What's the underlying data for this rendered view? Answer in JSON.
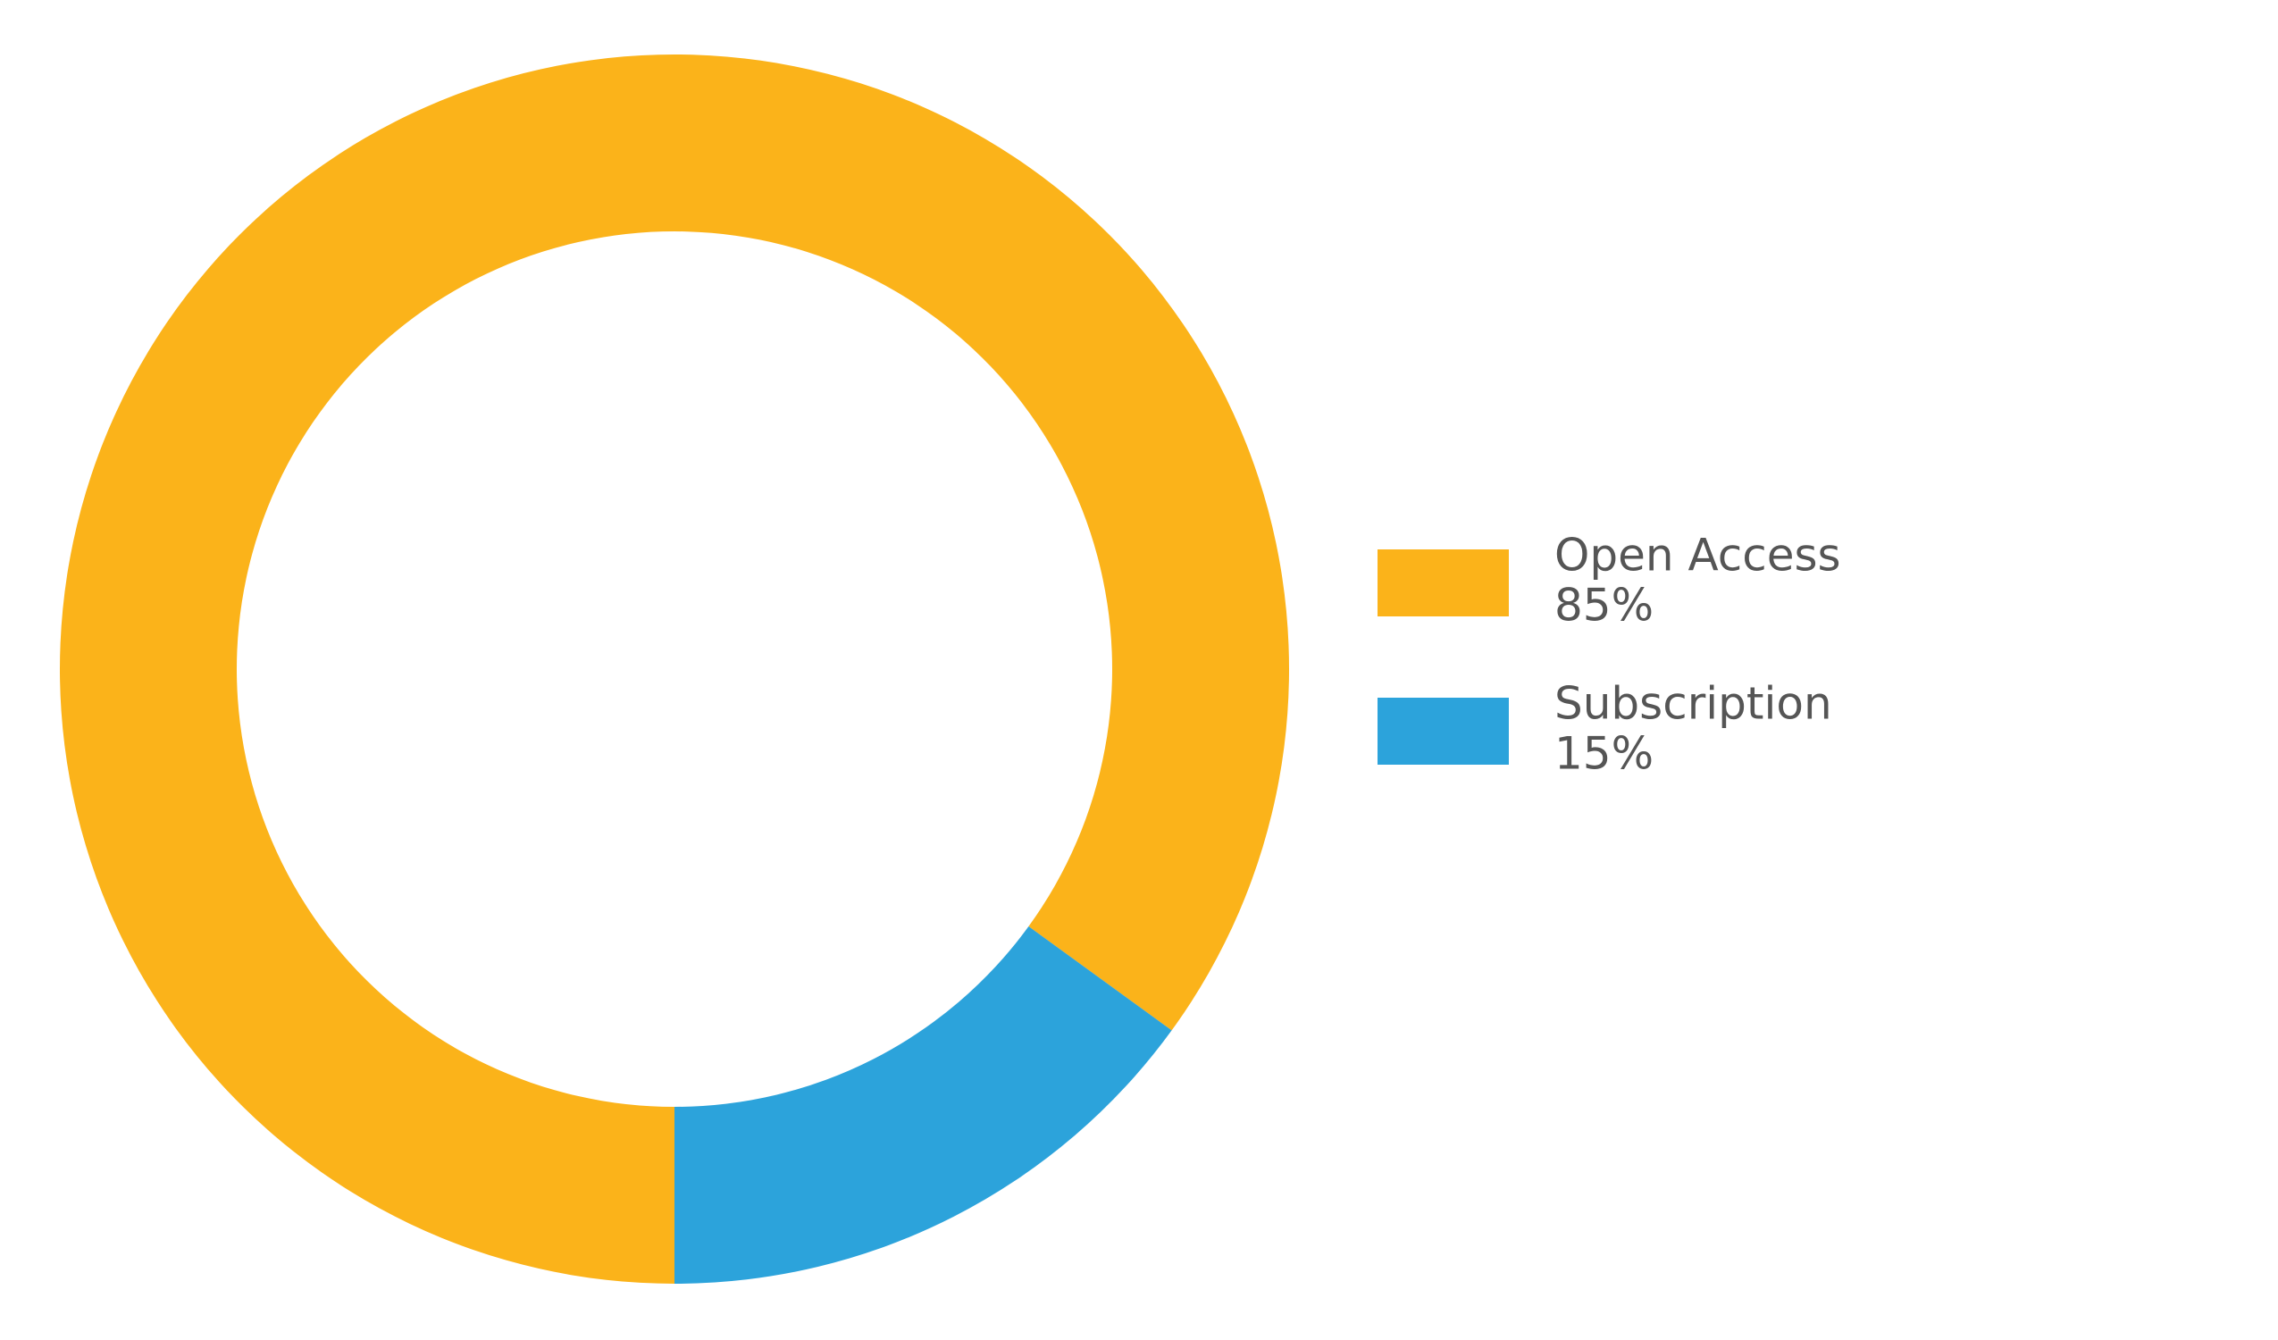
{
  "chart_data": {
    "type": "donut",
    "categories": [
      "Open Access",
      "Subscription"
    ],
    "values": [
      85,
      15
    ],
    "value_labels": [
      "85%",
      "15%"
    ],
    "colors": [
      "#fbb31a",
      "#2ca3db"
    ],
    "start_angle": 180,
    "legend": "right"
  }
}
